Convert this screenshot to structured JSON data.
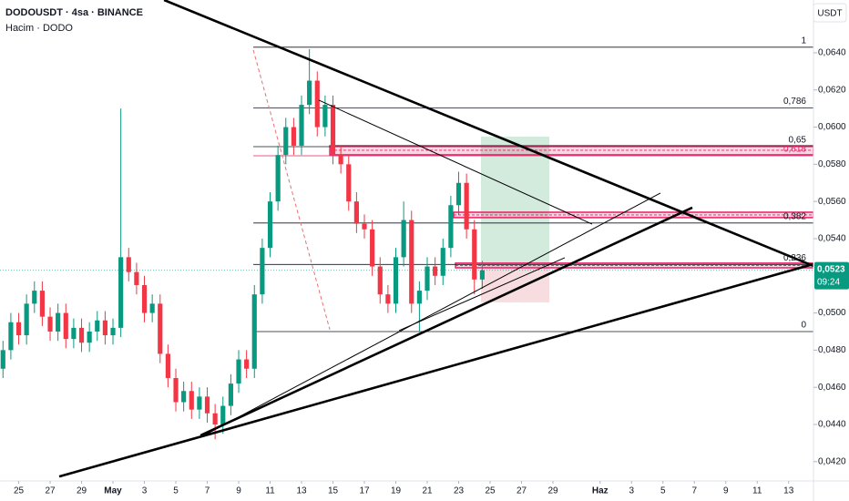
{
  "chart_data": {
    "type": "candlestick",
    "title": "DODOUSDT · 4sa · BINANCE",
    "volume_label": "Hacim · DODO",
    "currency": "USDT",
    "up_color": "#089981",
    "down_color": "#f23645",
    "x": [
      24,
      24.5,
      25,
      25.5,
      26,
      26.5,
      27,
      27.5,
      28,
      28.5,
      29,
      29.5,
      30,
      30.5,
      31,
      31.5,
      32,
      32.5,
      33,
      33.5,
      34,
      34.5,
      35,
      35.5,
      36,
      36.5,
      37,
      37.5,
      38,
      38.5,
      39,
      39.5,
      40,
      40.5,
      41,
      41.5,
      42,
      42.5,
      43,
      43.5,
      44,
      44.5,
      45,
      45.5,
      46,
      46.5,
      47,
      47.5,
      48,
      48.5,
      49,
      49.5,
      50,
      50.5,
      51,
      51.5,
      52,
      52.5,
      53,
      53.5,
      54,
      54.5
    ],
    "open": [
      0.047,
      0.048,
      0.0495,
      0.0488,
      0.0505,
      0.0512,
      0.0498,
      0.049,
      0.05,
      0.0486,
      0.0492,
      0.0484,
      0.049,
      0.0496,
      0.0488,
      0.0492,
      0.053,
      0.0522,
      0.0515,
      0.05,
      0.0505,
      0.0478,
      0.0465,
      0.0452,
      0.0458,
      0.0448,
      0.0455,
      0.0446,
      0.044,
      0.045,
      0.0462,
      0.0475,
      0.047,
      0.051,
      0.0535,
      0.056,
      0.0585,
      0.06,
      0.059,
      0.0612,
      0.0625,
      0.06,
      0.0612,
      0.0585,
      0.058,
      0.056,
      0.0548,
      0.0545,
      0.0525,
      0.051,
      0.0505,
      0.053,
      0.055,
      0.0505,
      0.0512,
      0.0525,
      0.052,
      0.0535,
      0.0558,
      0.057,
      0.0545,
      0.0518
    ],
    "high": [
      0.0485,
      0.05,
      0.05,
      0.051,
      0.0517,
      0.0517,
      0.0503,
      0.0505,
      0.0505,
      0.0497,
      0.0497,
      0.0495,
      0.0501,
      0.0501,
      0.0497,
      0.061,
      0.0535,
      0.0527,
      0.052,
      0.051,
      0.051,
      0.0483,
      0.047,
      0.0463,
      0.0463,
      0.046,
      0.046,
      0.0451,
      0.0455,
      0.0467,
      0.048,
      0.048,
      0.0515,
      0.054,
      0.0565,
      0.059,
      0.0605,
      0.0605,
      0.0617,
      0.0642,
      0.063,
      0.0617,
      0.0617,
      0.059,
      0.0585,
      0.0565,
      0.0553,
      0.055,
      0.053,
      0.0515,
      0.0535,
      0.056,
      0.0555,
      0.0517,
      0.053,
      0.053,
      0.054,
      0.0563,
      0.0576,
      0.0575,
      0.055,
      0.0528
    ],
    "low": [
      0.0465,
      0.0475,
      0.0483,
      0.0483,
      0.05,
      0.0493,
      0.0485,
      0.0485,
      0.0481,
      0.0481,
      0.0479,
      0.0479,
      0.0485,
      0.0483,
      0.0483,
      0.0487,
      0.0517,
      0.051,
      0.0495,
      0.0495,
      0.0473,
      0.046,
      0.0447,
      0.0447,
      0.0443,
      0.0443,
      0.0441,
      0.0432,
      0.0435,
      0.0445,
      0.0457,
      0.0465,
      0.0465,
      0.0505,
      0.053,
      0.0555,
      0.058,
      0.0585,
      0.0585,
      0.0607,
      0.0595,
      0.0595,
      0.058,
      0.0575,
      0.0555,
      0.0543,
      0.054,
      0.052,
      0.0505,
      0.05,
      0.05,
      0.0525,
      0.05,
      0.049,
      0.0507,
      0.0515,
      0.0515,
      0.053,
      0.0553,
      0.054,
      0.051,
      0.0513
    ],
    "close": [
      0.048,
      0.0495,
      0.0488,
      0.0505,
      0.0512,
      0.0498,
      0.049,
      0.05,
      0.0486,
      0.0492,
      0.0484,
      0.049,
      0.0496,
      0.0488,
      0.0492,
      0.053,
      0.0522,
      0.0515,
      0.05,
      0.0505,
      0.0478,
      0.0465,
      0.0452,
      0.0458,
      0.0448,
      0.0455,
      0.0446,
      0.044,
      0.045,
      0.0462,
      0.0475,
      0.047,
      0.051,
      0.0535,
      0.056,
      0.0585,
      0.06,
      0.059,
      0.0612,
      0.0625,
      0.06,
      0.0612,
      0.0585,
      0.058,
      0.056,
      0.0548,
      0.0545,
      0.0525,
      0.051,
      0.0505,
      0.053,
      0.055,
      0.0505,
      0.0512,
      0.0525,
      0.052,
      0.0535,
      0.0558,
      0.057,
      0.0545,
      0.0518,
      0.0523
    ],
    "xlim": [
      23.81,
      75.58
    ],
    "ylim": [
      0.04096,
      0.06684
    ],
    "xticks": [
      {
        "value": 25,
        "label": "25"
      },
      {
        "value": 27,
        "label": "27"
      },
      {
        "value": 29,
        "label": "29"
      },
      {
        "value": 31,
        "label": "May"
      },
      {
        "value": 33,
        "label": "3"
      },
      {
        "value": 35,
        "label": "5"
      },
      {
        "value": 37,
        "label": "7"
      },
      {
        "value": 39,
        "label": "9"
      },
      {
        "value": 41,
        "label": "11"
      },
      {
        "value": 43,
        "label": "13"
      },
      {
        "value": 45,
        "label": "15"
      },
      {
        "value": 47,
        "label": "17"
      },
      {
        "value": 49,
        "label": "19"
      },
      {
        "value": 51,
        "label": "21"
      },
      {
        "value": 53,
        "label": "23"
      },
      {
        "value": 55,
        "label": "25"
      },
      {
        "value": 57,
        "label": "27"
      },
      {
        "value": 59,
        "label": "29"
      },
      {
        "value": 62,
        "label": "Haz"
      },
      {
        "value": 64,
        "label": "3"
      },
      {
        "value": 66,
        "label": "5"
      },
      {
        "value": 68,
        "label": "7"
      },
      {
        "value": 70,
        "label": "9"
      },
      {
        "value": 72,
        "label": "11"
      },
      {
        "value": 74,
        "label": "13"
      }
    ],
    "yticks": [
      {
        "value": 0.042,
        "label": "0,0420"
      },
      {
        "value": 0.044,
        "label": "0,0440"
      },
      {
        "value": 0.046,
        "label": "0,0460"
      },
      {
        "value": 0.048,
        "label": "0,0480"
      },
      {
        "value": 0.05,
        "label": "0,0500"
      },
      {
        "value": 0.054,
        "label": "0,0540"
      },
      {
        "value": 0.056,
        "label": "0,0560"
      },
      {
        "value": 0.058,
        "label": "0,0580"
      },
      {
        "value": 0.06,
        "label": "0,0600"
      },
      {
        "value": 0.062,
        "label": "0,0620"
      },
      {
        "value": 0.064,
        "label": "0,0640"
      }
    ],
    "last_price": {
      "value": 0.0523,
      "label": "0,0523"
    },
    "countdown": "09:24",
    "fib": {
      "x_start": 39.93,
      "color": "#131722",
      "levels": [
        {
          "label": "1",
          "price": 0.0643,
          "color": "#131722"
        },
        {
          "label": "0,786",
          "price": 0.06103,
          "color": "#131722"
        },
        {
          "label": "0,65",
          "price": 0.05895,
          "color": "#131722"
        },
        {
          "label": "0,618",
          "price": 0.05846,
          "color": "#e91e63"
        },
        {
          "label": "0,382",
          "price": 0.05484,
          "color": "#131722"
        },
        {
          "label": "0,236",
          "price": 0.05261,
          "color": "#131722"
        },
        {
          "label": "0",
          "price": 0.049,
          "color": "#131722"
        }
      ]
    },
    "zones": {
      "color": "#e91e63",
      "items": [
        {
          "x0": 44.8,
          "x1": 75.58,
          "top": 0.059,
          "bottom": 0.05851
        },
        {
          "x0": 52.68,
          "x1": 75.58,
          "top": 0.05542,
          "bottom": 0.05513
        },
        {
          "x0": 52.8,
          "x1": 75.58,
          "top": 0.05268,
          "bottom": 0.05243
        }
      ]
    },
    "position": {
      "x0": 54.42,
      "x1": 58.77,
      "target": 0.05949,
      "entry": 0.05253,
      "stop": 0.05057,
      "target_color": "#c8e6d4",
      "stop_color": "#f5d5d8"
    },
    "trendlines": [
      {
        "x": [
          34.25,
          75.58
        ],
        "y": [
          0.06684,
          0.05253
        ],
        "bold": true,
        "dashed": false
      },
      {
        "x": [
          27.58,
          75.58
        ],
        "y": [
          0.0412,
          0.05263
        ],
        "bold": true,
        "dashed": false
      },
      {
        "x": [
          36.57,
          67.87
        ],
        "y": [
          0.04341,
          0.05567
        ],
        "bold": true,
        "dashed": false
      },
      {
        "x": [
          36.57,
          65.84
        ],
        "y": [
          0.04331,
          0.05645
        ],
        "bold": false,
        "dashed": false
      },
      {
        "x": [
          44.1,
          61.49
        ],
        "y": [
          0.06145,
          0.05478
        ],
        "bold": false,
        "dashed": false
      },
      {
        "x": [
          49.2,
          59.75
        ],
        "y": [
          0.04905,
          0.05297
        ],
        "bold": false,
        "dashed": false
      },
      {
        "x": [
          39.93,
          44.8
        ],
        "y": [
          0.06415,
          0.0491
        ],
        "bold": false,
        "dashed": true
      }
    ]
  }
}
